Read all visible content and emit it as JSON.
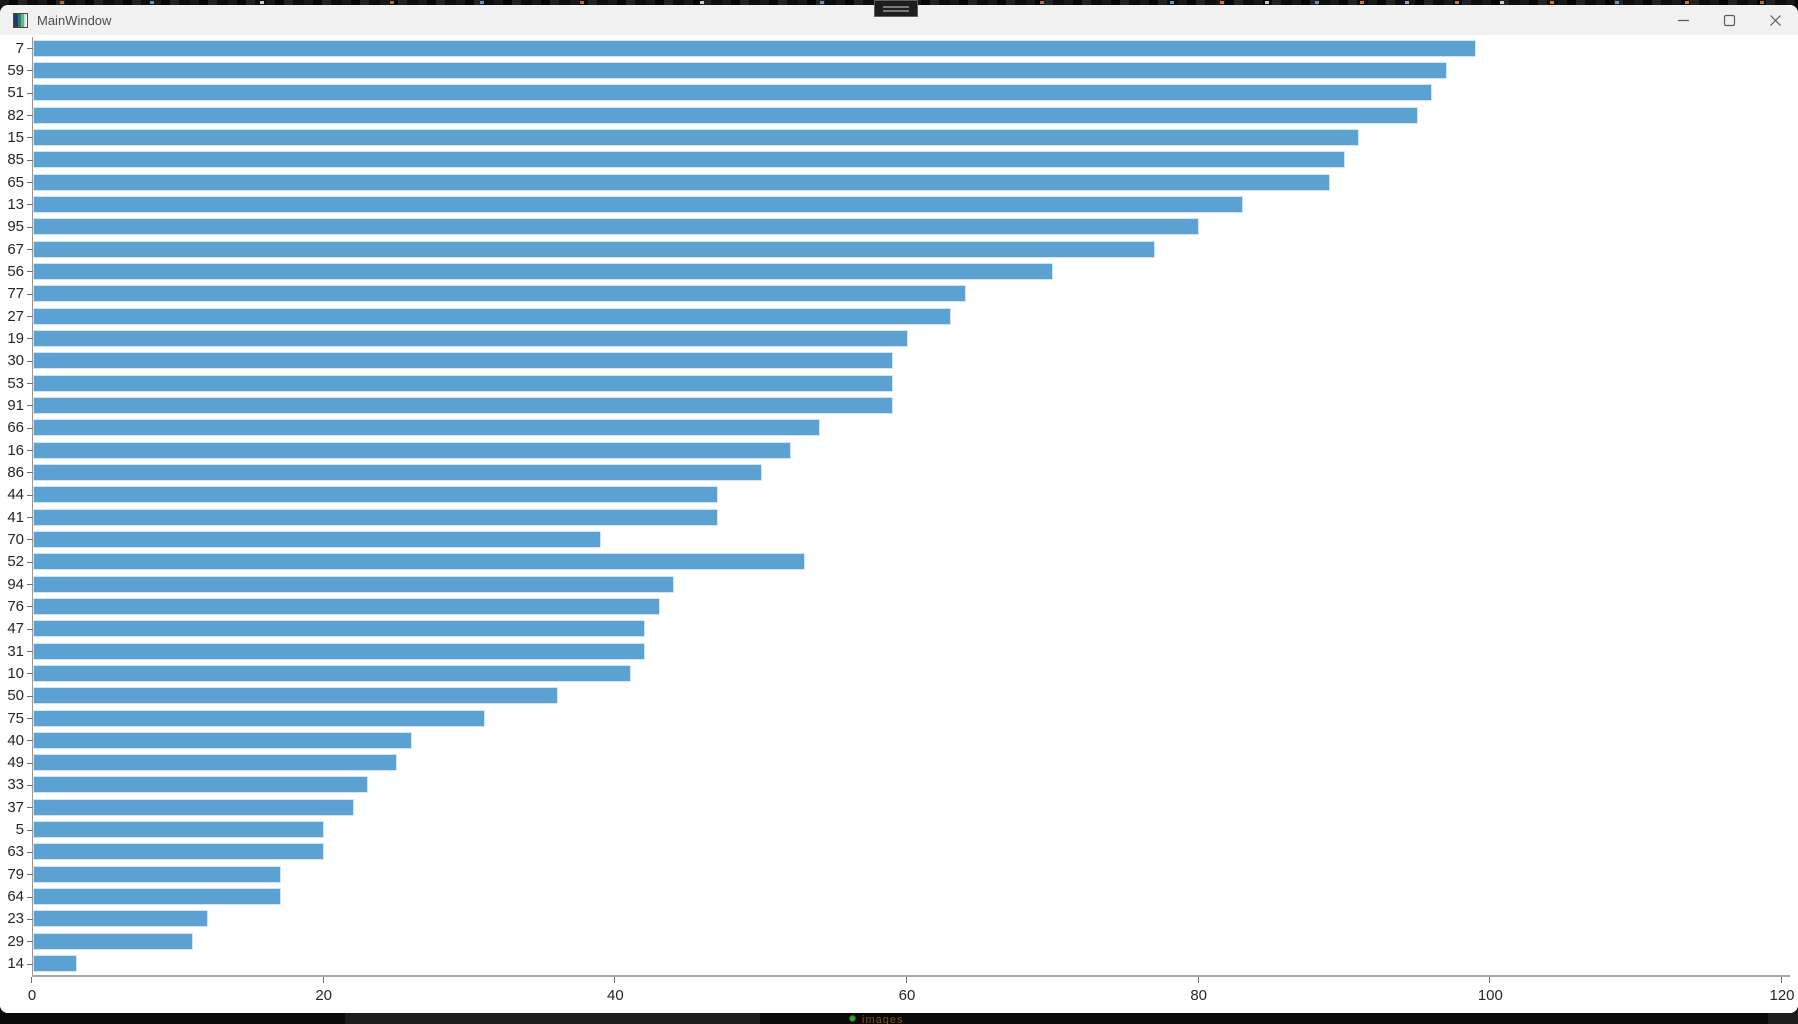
{
  "window": {
    "title": "MainWindow",
    "controls": {
      "minimize": "minimize",
      "maximize": "maximize",
      "close": "close"
    }
  },
  "chart_data": {
    "type": "bar",
    "orientation": "horizontal",
    "title": "",
    "xlabel": "",
    "ylabel": "",
    "xlim": [
      0,
      120
    ],
    "x_ticks": [
      0,
      20,
      40,
      60,
      80,
      100,
      120
    ],
    "grid": false,
    "legend": "none",
    "bar_color": "#5BA1D2",
    "bar_edge_color": "#D3E4F2",
    "categories": [
      "7",
      "59",
      "51",
      "82",
      "15",
      "85",
      "65",
      "13",
      "95",
      "67",
      "56",
      "77",
      "27",
      "19",
      "30",
      "53",
      "91",
      "66",
      "16",
      "86",
      "44",
      "41",
      "70",
      "52",
      "94",
      "76",
      "47",
      "31",
      "10",
      "50",
      "75",
      "40",
      "49",
      "33",
      "37",
      "5",
      "63",
      "79",
      "64",
      "23",
      "29",
      "14"
    ],
    "values": [
      99,
      97,
      96,
      95,
      91,
      90,
      89,
      83,
      80,
      77,
      70,
      64,
      63,
      60,
      59,
      59,
      59,
      54,
      52,
      50,
      47,
      47,
      39,
      53,
      44,
      43,
      42,
      42,
      41,
      36,
      31,
      26,
      25,
      23,
      22,
      20,
      20,
      17,
      17,
      12,
      11,
      3
    ]
  },
  "background_app": {
    "status_text": "images"
  }
}
